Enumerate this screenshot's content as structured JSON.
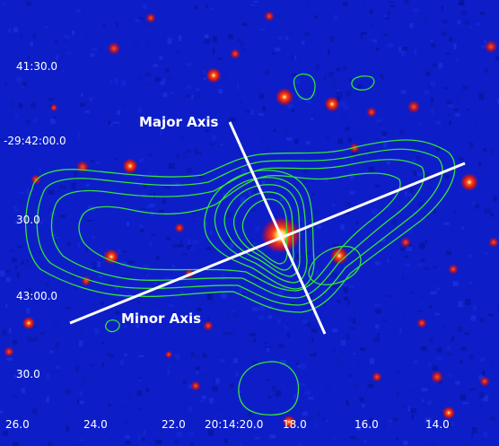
{
  "labels": {
    "major_axis": "Major Axis",
    "minor_axis": "Minor Axis"
  },
  "dec_ticks": [
    "41:30.0",
    "-29:42:00.0",
    "30.0",
    "43:00.0",
    "30.0"
  ],
  "ra_ticks": [
    "26.0",
    "24.0",
    "22.0",
    "20:14:20.0",
    "18.0",
    "16.0",
    "14.0"
  ],
  "colors": {
    "background": "#0d1ec8",
    "contour": "#36e23c",
    "axis_line": "#ffffff",
    "source": "#ff2a10"
  }
}
